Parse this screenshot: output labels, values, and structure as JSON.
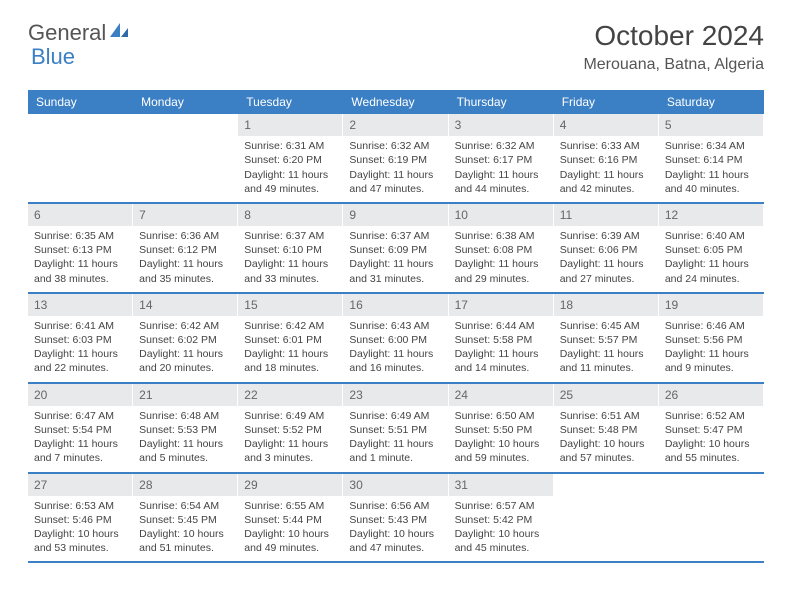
{
  "brand": {
    "part1": "General",
    "part2": "Blue"
  },
  "title": "October 2024",
  "location": "Merouana, Batna, Algeria",
  "colors": {
    "header_bg": "#3b7fc4",
    "header_text": "#ffffff",
    "daynum_bg": "#e8e9eb",
    "border": "#3b7fc4",
    "text": "#444444"
  },
  "weekdays": [
    "Sunday",
    "Monday",
    "Tuesday",
    "Wednesday",
    "Thursday",
    "Friday",
    "Saturday"
  ],
  "weeks": [
    [
      {
        "n": "",
        "sunrise": "",
        "sunset": "",
        "daylight": ""
      },
      {
        "n": "",
        "sunrise": "",
        "sunset": "",
        "daylight": ""
      },
      {
        "n": "1",
        "sunrise": "Sunrise: 6:31 AM",
        "sunset": "Sunset: 6:20 PM",
        "daylight": "Daylight: 11 hours and 49 minutes."
      },
      {
        "n": "2",
        "sunrise": "Sunrise: 6:32 AM",
        "sunset": "Sunset: 6:19 PM",
        "daylight": "Daylight: 11 hours and 47 minutes."
      },
      {
        "n": "3",
        "sunrise": "Sunrise: 6:32 AM",
        "sunset": "Sunset: 6:17 PM",
        "daylight": "Daylight: 11 hours and 44 minutes."
      },
      {
        "n": "4",
        "sunrise": "Sunrise: 6:33 AM",
        "sunset": "Sunset: 6:16 PM",
        "daylight": "Daylight: 11 hours and 42 minutes."
      },
      {
        "n": "5",
        "sunrise": "Sunrise: 6:34 AM",
        "sunset": "Sunset: 6:14 PM",
        "daylight": "Daylight: 11 hours and 40 minutes."
      }
    ],
    [
      {
        "n": "6",
        "sunrise": "Sunrise: 6:35 AM",
        "sunset": "Sunset: 6:13 PM",
        "daylight": "Daylight: 11 hours and 38 minutes."
      },
      {
        "n": "7",
        "sunrise": "Sunrise: 6:36 AM",
        "sunset": "Sunset: 6:12 PM",
        "daylight": "Daylight: 11 hours and 35 minutes."
      },
      {
        "n": "8",
        "sunrise": "Sunrise: 6:37 AM",
        "sunset": "Sunset: 6:10 PM",
        "daylight": "Daylight: 11 hours and 33 minutes."
      },
      {
        "n": "9",
        "sunrise": "Sunrise: 6:37 AM",
        "sunset": "Sunset: 6:09 PM",
        "daylight": "Daylight: 11 hours and 31 minutes."
      },
      {
        "n": "10",
        "sunrise": "Sunrise: 6:38 AM",
        "sunset": "Sunset: 6:08 PM",
        "daylight": "Daylight: 11 hours and 29 minutes."
      },
      {
        "n": "11",
        "sunrise": "Sunrise: 6:39 AM",
        "sunset": "Sunset: 6:06 PM",
        "daylight": "Daylight: 11 hours and 27 minutes."
      },
      {
        "n": "12",
        "sunrise": "Sunrise: 6:40 AM",
        "sunset": "Sunset: 6:05 PM",
        "daylight": "Daylight: 11 hours and 24 minutes."
      }
    ],
    [
      {
        "n": "13",
        "sunrise": "Sunrise: 6:41 AM",
        "sunset": "Sunset: 6:03 PM",
        "daylight": "Daylight: 11 hours and 22 minutes."
      },
      {
        "n": "14",
        "sunrise": "Sunrise: 6:42 AM",
        "sunset": "Sunset: 6:02 PM",
        "daylight": "Daylight: 11 hours and 20 minutes."
      },
      {
        "n": "15",
        "sunrise": "Sunrise: 6:42 AM",
        "sunset": "Sunset: 6:01 PM",
        "daylight": "Daylight: 11 hours and 18 minutes."
      },
      {
        "n": "16",
        "sunrise": "Sunrise: 6:43 AM",
        "sunset": "Sunset: 6:00 PM",
        "daylight": "Daylight: 11 hours and 16 minutes."
      },
      {
        "n": "17",
        "sunrise": "Sunrise: 6:44 AM",
        "sunset": "Sunset: 5:58 PM",
        "daylight": "Daylight: 11 hours and 14 minutes."
      },
      {
        "n": "18",
        "sunrise": "Sunrise: 6:45 AM",
        "sunset": "Sunset: 5:57 PM",
        "daylight": "Daylight: 11 hours and 11 minutes."
      },
      {
        "n": "19",
        "sunrise": "Sunrise: 6:46 AM",
        "sunset": "Sunset: 5:56 PM",
        "daylight": "Daylight: 11 hours and 9 minutes."
      }
    ],
    [
      {
        "n": "20",
        "sunrise": "Sunrise: 6:47 AM",
        "sunset": "Sunset: 5:54 PM",
        "daylight": "Daylight: 11 hours and 7 minutes."
      },
      {
        "n": "21",
        "sunrise": "Sunrise: 6:48 AM",
        "sunset": "Sunset: 5:53 PM",
        "daylight": "Daylight: 11 hours and 5 minutes."
      },
      {
        "n": "22",
        "sunrise": "Sunrise: 6:49 AM",
        "sunset": "Sunset: 5:52 PM",
        "daylight": "Daylight: 11 hours and 3 minutes."
      },
      {
        "n": "23",
        "sunrise": "Sunrise: 6:49 AM",
        "sunset": "Sunset: 5:51 PM",
        "daylight": "Daylight: 11 hours and 1 minute."
      },
      {
        "n": "24",
        "sunrise": "Sunrise: 6:50 AM",
        "sunset": "Sunset: 5:50 PM",
        "daylight": "Daylight: 10 hours and 59 minutes."
      },
      {
        "n": "25",
        "sunrise": "Sunrise: 6:51 AM",
        "sunset": "Sunset: 5:48 PM",
        "daylight": "Daylight: 10 hours and 57 minutes."
      },
      {
        "n": "26",
        "sunrise": "Sunrise: 6:52 AM",
        "sunset": "Sunset: 5:47 PM",
        "daylight": "Daylight: 10 hours and 55 minutes."
      }
    ],
    [
      {
        "n": "27",
        "sunrise": "Sunrise: 6:53 AM",
        "sunset": "Sunset: 5:46 PM",
        "daylight": "Daylight: 10 hours and 53 minutes."
      },
      {
        "n": "28",
        "sunrise": "Sunrise: 6:54 AM",
        "sunset": "Sunset: 5:45 PM",
        "daylight": "Daylight: 10 hours and 51 minutes."
      },
      {
        "n": "29",
        "sunrise": "Sunrise: 6:55 AM",
        "sunset": "Sunset: 5:44 PM",
        "daylight": "Daylight: 10 hours and 49 minutes."
      },
      {
        "n": "30",
        "sunrise": "Sunrise: 6:56 AM",
        "sunset": "Sunset: 5:43 PM",
        "daylight": "Daylight: 10 hours and 47 minutes."
      },
      {
        "n": "31",
        "sunrise": "Sunrise: 6:57 AM",
        "sunset": "Sunset: 5:42 PM",
        "daylight": "Daylight: 10 hours and 45 minutes."
      },
      {
        "n": "",
        "sunrise": "",
        "sunset": "",
        "daylight": ""
      },
      {
        "n": "",
        "sunrise": "",
        "sunset": "",
        "daylight": ""
      }
    ]
  ]
}
